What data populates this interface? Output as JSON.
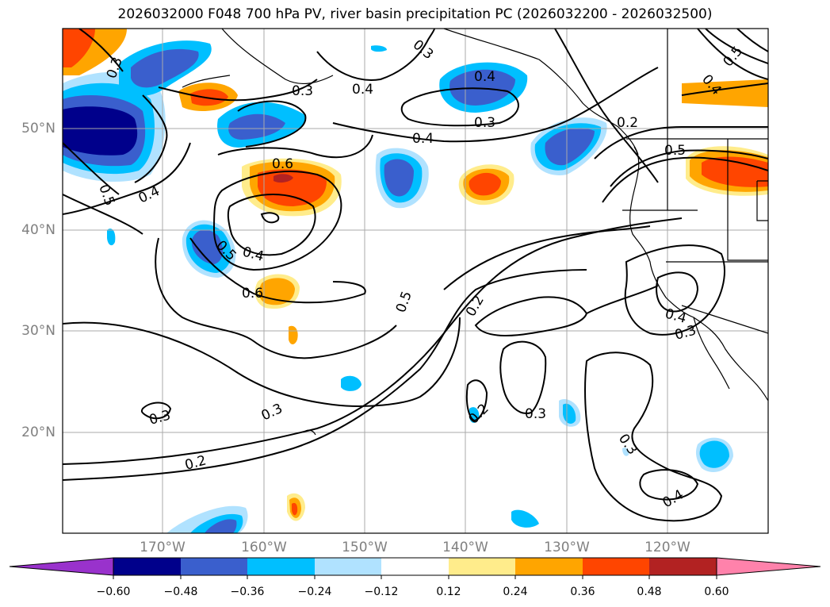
{
  "title": "2026032000 F048 700 hPa PV, river basin precipitation PC (2026032200 - 2026032500)",
  "map": {
    "lat_labels": [
      "50°N",
      "40°N",
      "30°N",
      "20°N"
    ],
    "lon_labels": [
      "170°W",
      "160°W",
      "150°W",
      "140°W",
      "130°W",
      "120°W"
    ],
    "contour_labels": [
      "0.3",
      "0.3",
      "0.4",
      "0.3",
      "0.4",
      "0.3",
      "0.4",
      "0.4",
      "0.5",
      "0.2",
      "0.5",
      "0.5",
      "0.4",
      "0.6",
      "0.5",
      "0.4",
      "0.6",
      "0.5",
      "0.2",
      "0.4",
      "0.3",
      "0.3",
      "0.3",
      "0.2",
      "0.3",
      "0.2",
      "0.3",
      "0.4"
    ]
  },
  "colorbar": {
    "ticks": [
      "−0.60",
      "−0.48",
      "−0.36",
      "−0.24",
      "−0.12",
      "0.12",
      "0.24",
      "0.36",
      "0.48",
      "0.60"
    ],
    "colors": [
      "#9932cc",
      "#00008b",
      "#3a5fcd",
      "#00bfff",
      "#b0e2ff",
      "#ffffff",
      "#ffec8b",
      "#ffa500",
      "#ff4500",
      "#b22222",
      "#ff82ab"
    ]
  },
  "colors": {
    "fill_lvl1_pos": "#ffec8b",
    "fill_lvl2_pos": "#ffa500",
    "fill_lvl3_pos": "#ff4500",
    "fill_lvl4_pos": "#b22222",
    "fill_lvl1_neg": "#b0e2ff",
    "fill_lvl2_neg": "#00bfff",
    "fill_lvl3_neg": "#3a5fcd",
    "fill_lvl4_neg": "#00008b",
    "grid": "#aaaaaa",
    "label_gray": "#808080"
  }
}
